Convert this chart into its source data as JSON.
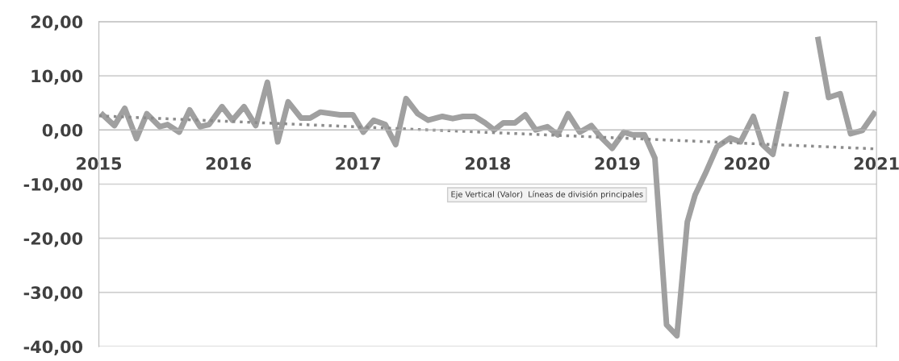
{
  "chart_data": {
    "type": "line",
    "ylim": [
      -40,
      20
    ],
    "yticks": [
      {
        "value": -40,
        "label": "-40,00"
      },
      {
        "value": -30,
        "label": "-30,00"
      },
      {
        "value": -20,
        "label": "-20,00"
      },
      {
        "value": -10,
        "label": "-10,00"
      },
      {
        "value": 0,
        "label": "0,00"
      },
      {
        "value": 10,
        "label": "10,00"
      },
      {
        "value": 20,
        "label": "20,00"
      }
    ],
    "xlim": [
      2015,
      2021
    ],
    "xticks": [
      2015,
      2016,
      2017,
      2018,
      2019,
      2020,
      2021
    ],
    "grid": "y",
    "marker": "none",
    "series": [
      {
        "color": "#a0a0a0",
        "line_style": "solid",
        "x": [
          2015.03,
          2015.12,
          2015.2,
          2015.29,
          2015.37,
          2015.47,
          2015.53,
          2015.62,
          2015.7,
          2015.78,
          2015.85,
          2015.95,
          2016.03,
          2016.12,
          2016.21,
          2016.3,
          2016.38,
          2016.46,
          2016.56,
          2016.63,
          2016.71,
          2016.86,
          2016.96,
          2017.04,
          2017.12,
          2017.21,
          2017.29,
          2017.37,
          2017.46,
          2017.54,
          2017.65,
          2017.73,
          2017.81,
          2017.9,
          2017.98,
          2018.05,
          2018.12,
          2018.21,
          2018.29,
          2018.37,
          2018.46,
          2018.54,
          2018.62,
          2018.71,
          2018.8,
          2018.88,
          2018.96,
          2019.05,
          2019.12,
          2019.21,
          2019.29,
          2019.38,
          2019.46,
          2019.54,
          2019.6,
          2019.68,
          2019.77,
          2019.87,
          2019.95,
          2020.05,
          2020.12,
          2020.2,
          2020.3,
          2020.42,
          2020.55,
          2020.63,
          2020.72,
          2020.8,
          2020.89,
          2020.98
        ],
        "values": [
          2.8,
          0.8,
          4.0,
          -1.6,
          3.0,
          0.6,
          1.0,
          -0.4,
          3.7,
          0.6,
          1.0,
          4.3,
          1.8,
          4.3,
          0.8,
          8.8,
          -2.2,
          5.2,
          2.2,
          2.2,
          3.3,
          2.8,
          2.8,
          -0.4,
          1.8,
          1.0,
          -2.7,
          5.8,
          3.0,
          1.8,
          2.5,
          2.1,
          2.5,
          2.5,
          1.3,
          0,
          1.3,
          1.3,
          2.8,
          0,
          0.6,
          -0.9,
          3.0,
          -0.4,
          0.8,
          -1.5,
          -3.4,
          -0.4,
          -0.9,
          -0.9,
          -5.2,
          -36,
          -38,
          -17,
          -12,
          -8,
          -3.1,
          -1.5,
          -2.2,
          2.5,
          -2.7,
          -4.5,
          6.6,
          null,
          16.7,
          6.0,
          6.7,
          -0.7,
          -0.1,
          3.0
        ]
      },
      {
        "type": "line",
        "color": "#8c8c8c",
        "line_style": "dotted",
        "x": [
          2015,
          2021
        ],
        "values": [
          2.6,
          -3.5
        ]
      }
    ],
    "annotations": [
      "Eje Vertical (Valor)  Líneas de división principales"
    ]
  }
}
